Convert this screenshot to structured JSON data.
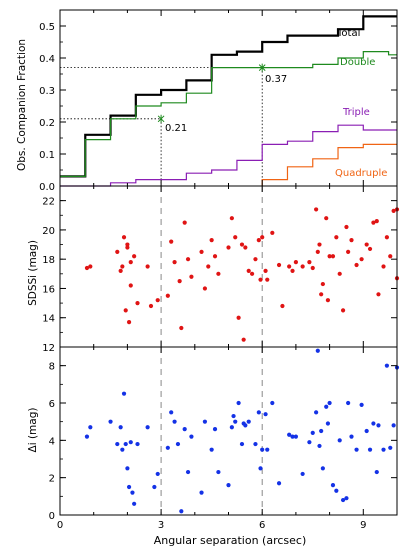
{
  "colors": {
    "total": "#000000",
    "double": "#1e8a1e",
    "triple": "#8a1eb4",
    "quadruple": "#f06414",
    "sdss": "#e01414",
    "delta": "#1432e6",
    "axis": "#000000",
    "guide": "#888888"
  },
  "chart_data": [
    {
      "type": "line",
      "xlim": [
        0,
        10
      ],
      "ylim": [
        0,
        0.55
      ],
      "ylabel": "Obs. Companion Fraction",
      "yticks": [
        "0.0",
        "0.1",
        "0.2",
        "0.3",
        "0.4",
        "0.5"
      ],
      "step_edges": [
        0,
        0.75,
        1.5,
        2.25,
        3.0,
        3.75,
        4.5,
        5.25,
        6.0,
        6.75,
        7.5,
        8.25,
        9.0,
        9.75,
        10.0
      ],
      "series": [
        {
          "name": "Total",
          "values": [
            0.03,
            0.16,
            0.22,
            0.285,
            0.3,
            0.33,
            0.41,
            0.42,
            0.45,
            0.47,
            0.47,
            0.49,
            0.53,
            0.53
          ]
        },
        {
          "name": "Double",
          "values": [
            0.03,
            0.145,
            0.21,
            0.25,
            0.26,
            0.29,
            0.37,
            0.37,
            0.37,
            0.37,
            0.38,
            0.4,
            0.42,
            0.41
          ]
        },
        {
          "name": "Triple",
          "values": [
            0.0,
            0.0,
            0.01,
            0.02,
            0.02,
            0.04,
            0.05,
            0.08,
            0.13,
            0.14,
            0.17,
            0.19,
            0.175,
            0.175
          ]
        },
        {
          "name": "Quadruple",
          "values": [
            null,
            null,
            null,
            null,
            null,
            null,
            null,
            null,
            0.02,
            0.06,
            0.085,
            0.12,
            0.13,
            0.13
          ]
        }
      ],
      "annotations": [
        {
          "x": 3.0,
          "y": 0.21,
          "text": "0.21"
        },
        {
          "x": 6.0,
          "y": 0.37,
          "text": "0.37"
        }
      ]
    },
    {
      "type": "scatter",
      "xlim": [
        0,
        10
      ],
      "ylim": [
        12,
        23
      ],
      "ylabel": "SDSSi (mag)",
      "yticks": [
        "12",
        "14",
        "16",
        "18",
        "20",
        "22"
      ],
      "points": [
        [
          0.8,
          17.4
        ],
        [
          0.9,
          17.5
        ],
        [
          1.7,
          18.5
        ],
        [
          1.8,
          17.2
        ],
        [
          1.85,
          17.5
        ],
        [
          1.9,
          19.5
        ],
        [
          1.95,
          14.5
        ],
        [
          2.0,
          19.0
        ],
        [
          2.0,
          18.8
        ],
        [
          2.05,
          13.7
        ],
        [
          2.1,
          16.2
        ],
        [
          2.1,
          17.8
        ],
        [
          2.2,
          18.2
        ],
        [
          2.3,
          15.0
        ],
        [
          2.6,
          17.5
        ],
        [
          2.7,
          14.8
        ],
        [
          2.9,
          15.2
        ],
        [
          3.2,
          15.5
        ],
        [
          3.3,
          19.2
        ],
        [
          3.4,
          17.8
        ],
        [
          3.55,
          16.5
        ],
        [
          3.6,
          13.3
        ],
        [
          3.7,
          20.5
        ],
        [
          3.8,
          18.0
        ],
        [
          3.9,
          16.8
        ],
        [
          4.2,
          18.5
        ],
        [
          4.3,
          16.0
        ],
        [
          4.4,
          17.5
        ],
        [
          4.5,
          19.3
        ],
        [
          4.6,
          18.2
        ],
        [
          4.7,
          17.0
        ],
        [
          5.0,
          18.8
        ],
        [
          5.1,
          20.8
        ],
        [
          5.2,
          19.5
        ],
        [
          5.3,
          14.0
        ],
        [
          5.4,
          19.0
        ],
        [
          5.45,
          12.5
        ],
        [
          5.5,
          18.8
        ],
        [
          5.6,
          17.2
        ],
        [
          5.7,
          17.0
        ],
        [
          5.8,
          18.0
        ],
        [
          5.9,
          19.3
        ],
        [
          5.95,
          16.6
        ],
        [
          6.0,
          19.5
        ],
        [
          6.1,
          17.2
        ],
        [
          6.15,
          16.6
        ],
        [
          6.3,
          19.8
        ],
        [
          6.5,
          17.6
        ],
        [
          6.6,
          14.8
        ],
        [
          6.8,
          17.5
        ],
        [
          6.9,
          17.2
        ],
        [
          7.0,
          17.8
        ],
        [
          7.2,
          17.5
        ],
        [
          7.4,
          17.8
        ],
        [
          7.5,
          17.4
        ],
        [
          7.6,
          21.4
        ],
        [
          7.65,
          18.5
        ],
        [
          7.7,
          19.0
        ],
        [
          7.75,
          15.6
        ],
        [
          7.8,
          16.3
        ],
        [
          7.9,
          20.8
        ],
        [
          7.95,
          15.2
        ],
        [
          8.0,
          18.2
        ],
        [
          8.1,
          18.2
        ],
        [
          8.2,
          19.5
        ],
        [
          8.3,
          17.0
        ],
        [
          8.4,
          14.5
        ],
        [
          8.5,
          20.2
        ],
        [
          8.55,
          18.5
        ],
        [
          8.65,
          19.3
        ],
        [
          8.8,
          17.6
        ],
        [
          8.95,
          18.0
        ],
        [
          9.1,
          19.0
        ],
        [
          9.2,
          18.7
        ],
        [
          9.3,
          20.5
        ],
        [
          9.4,
          20.6
        ],
        [
          9.45,
          15.6
        ],
        [
          9.6,
          17.5
        ],
        [
          9.7,
          19.5
        ],
        [
          9.8,
          18.2
        ],
        [
          9.9,
          21.3
        ],
        [
          10.0,
          21.4
        ],
        [
          10.0,
          16.7
        ]
      ]
    },
    {
      "type": "scatter",
      "xlim": [
        0,
        10
      ],
      "ylim": [
        0,
        9
      ],
      "xlabel": "Angular separation (arcsec)",
      "ylabel": "Δi (mag)",
      "xticks": [
        "0",
        "3",
        "6",
        "9"
      ],
      "yticks": [
        "0",
        "2",
        "4",
        "6",
        "8"
      ],
      "points": [
        [
          0.8,
          4.2
        ],
        [
          0.9,
          4.7
        ],
        [
          1.5,
          5.0
        ],
        [
          1.7,
          3.8
        ],
        [
          1.8,
          4.7
        ],
        [
          1.85,
          3.5
        ],
        [
          1.9,
          6.5
        ],
        [
          1.95,
          3.8
        ],
        [
          2.0,
          2.5
        ],
        [
          2.05,
          1.5
        ],
        [
          2.1,
          3.9
        ],
        [
          2.15,
          1.2
        ],
        [
          2.2,
          0.6
        ],
        [
          2.3,
          3.8
        ],
        [
          2.6,
          4.7
        ],
        [
          2.8,
          1.5
        ],
        [
          2.9,
          2.2
        ],
        [
          3.2,
          3.6
        ],
        [
          3.3,
          5.5
        ],
        [
          3.4,
          5.0
        ],
        [
          3.5,
          3.8
        ],
        [
          3.6,
          0.2
        ],
        [
          3.7,
          4.6
        ],
        [
          3.8,
          2.3
        ],
        [
          3.9,
          4.2
        ],
        [
          4.2,
          1.2
        ],
        [
          4.3,
          5.0
        ],
        [
          4.5,
          3.5
        ],
        [
          4.6,
          4.6
        ],
        [
          4.7,
          2.3
        ],
        [
          5.0,
          1.6
        ],
        [
          5.1,
          4.7
        ],
        [
          5.15,
          5.3
        ],
        [
          5.2,
          5.0
        ],
        [
          5.3,
          6.0
        ],
        [
          5.4,
          3.8
        ],
        [
          5.45,
          4.9
        ],
        [
          5.5,
          4.8
        ],
        [
          5.6,
          5.0
        ],
        [
          5.8,
          3.8
        ],
        [
          5.9,
          5.5
        ],
        [
          5.95,
          2.5
        ],
        [
          6.0,
          3.5
        ],
        [
          6.1,
          5.4
        ],
        [
          6.15,
          3.5
        ],
        [
          6.3,
          6.0
        ],
        [
          6.5,
          1.7
        ],
        [
          6.8,
          4.3
        ],
        [
          6.9,
          4.2
        ],
        [
          7.0,
          4.2
        ],
        [
          7.2,
          2.2
        ],
        [
          7.4,
          3.9
        ],
        [
          7.5,
          4.4
        ],
        [
          7.6,
          5.5
        ],
        [
          7.65,
          8.8
        ],
        [
          7.7,
          3.7
        ],
        [
          7.75,
          4.5
        ],
        [
          7.8,
          2.5
        ],
        [
          7.9,
          5.8
        ],
        [
          7.95,
          4.9
        ],
        [
          8.0,
          6.0
        ],
        [
          8.1,
          1.6
        ],
        [
          8.2,
          1.3
        ],
        [
          8.3,
          4.0
        ],
        [
          8.4,
          0.8
        ],
        [
          8.5,
          0.9
        ],
        [
          8.55,
          6.0
        ],
        [
          8.65,
          4.2
        ],
        [
          8.8,
          3.5
        ],
        [
          8.95,
          5.9
        ],
        [
          9.1,
          4.5
        ],
        [
          9.2,
          3.5
        ],
        [
          9.3,
          4.9
        ],
        [
          9.4,
          2.3
        ],
        [
          9.45,
          4.8
        ],
        [
          9.6,
          3.5
        ],
        [
          9.7,
          8.0
        ],
        [
          9.8,
          3.6
        ],
        [
          9.9,
          4.8
        ],
        [
          10.0,
          7.9
        ]
      ]
    }
  ]
}
